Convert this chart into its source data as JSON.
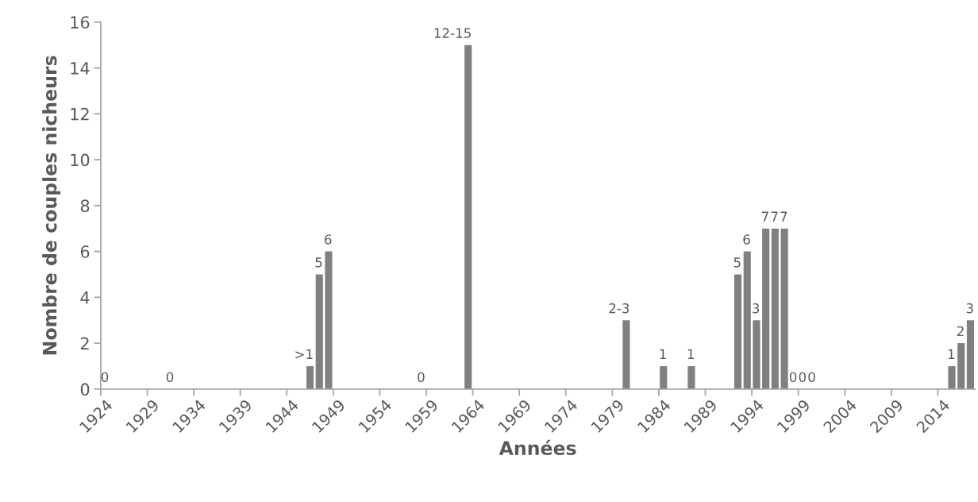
{
  "chart_data": {
    "type": "bar",
    "xlabel": "Années",
    "ylabel": "Nombre de couples nicheurs",
    "categories": [
      "1924",
      null,
      null,
      null,
      null,
      "1929",
      null,
      null,
      null,
      null,
      "1934",
      null,
      null,
      null,
      null,
      "1939",
      null,
      null,
      null,
      null,
      "1944",
      null,
      null,
      null,
      null,
      "1949",
      null,
      null,
      null,
      null,
      "1954",
      null,
      null,
      null,
      null,
      "1959",
      null,
      null,
      null,
      null,
      "1964",
      null,
      null,
      null,
      null,
      "1969",
      null,
      null,
      null,
      null,
      "1974",
      null,
      null,
      null,
      null,
      "1979",
      null,
      null,
      null,
      null,
      "1984",
      null,
      null,
      null,
      null,
      "1989",
      null,
      null,
      null,
      null,
      "1994",
      null,
      null,
      null,
      null,
      "1999",
      null,
      null,
      null,
      null,
      "2004",
      null,
      null,
      null,
      null,
      "2009",
      null,
      null,
      null,
      null,
      "2014",
      null,
      null,
      null
    ],
    "values": [
      0,
      null,
      null,
      null,
      null,
      null,
      null,
      0,
      null,
      null,
      null,
      null,
      null,
      null,
      null,
      null,
      null,
      null,
      null,
      null,
      null,
      null,
      1,
      5,
      6,
      null,
      null,
      null,
      null,
      null,
      null,
      null,
      null,
      null,
      0,
      null,
      null,
      null,
      null,
      15,
      null,
      null,
      null,
      null,
      null,
      null,
      null,
      null,
      null,
      null,
      null,
      null,
      null,
      null,
      null,
      null,
      3,
      null,
      null,
      null,
      1,
      null,
      null,
      1,
      null,
      null,
      null,
      null,
      5,
      6,
      3,
      7,
      7,
      7,
      0,
      0,
      0,
      null,
      null,
      null,
      null,
      null,
      null,
      null,
      null,
      null,
      null,
      null,
      null,
      null,
      null,
      1,
      2,
      3
    ],
    "value_labels": [
      "0",
      null,
      null,
      null,
      null,
      null,
      null,
      "0",
      null,
      null,
      null,
      null,
      null,
      null,
      null,
      null,
      null,
      null,
      null,
      null,
      null,
      null,
      ">1",
      "5",
      "6",
      null,
      null,
      null,
      null,
      null,
      null,
      null,
      null,
      null,
      "0",
      null,
      null,
      null,
      null,
      "12-15",
      null,
      null,
      null,
      null,
      null,
      null,
      null,
      null,
      null,
      null,
      null,
      null,
      null,
      null,
      null,
      null,
      "2-3",
      null,
      null,
      null,
      "1",
      null,
      null,
      "1",
      null,
      null,
      null,
      null,
      "5",
      "6",
      "3",
      "7",
      "7",
      "7",
      "0",
      "0",
      "0",
      null,
      null,
      null,
      null,
      null,
      null,
      null,
      null,
      null,
      null,
      null,
      null,
      null,
      null,
      "1",
      "2",
      "3"
    ],
    "color": "#808080",
    "ylim": [
      0,
      16
    ],
    "yticks": [
      0,
      2,
      4,
      6,
      8,
      10,
      12,
      14,
      16
    ],
    "grid": false,
    "legend": false
  }
}
